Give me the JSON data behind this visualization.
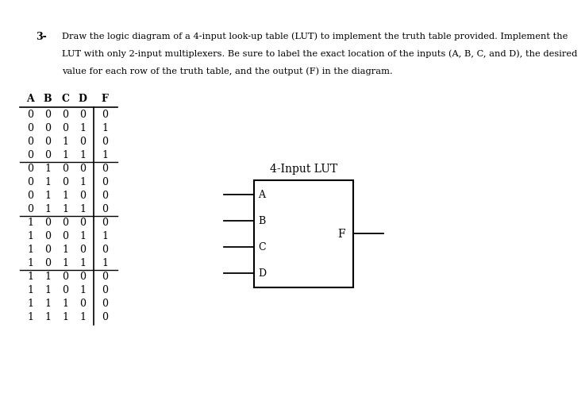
{
  "title_number": "3-",
  "title_text_line1": "Draw the logic diagram of a 4-input look-up table (LUT) to implement the truth table provided. Implement the",
  "title_text_line2": "LUT with only 2-input multiplexers. Be sure to label the exact location of the inputs (A, B, C, and D), the desired",
  "title_text_line3": "value for each row of the truth table, and the output (F) in the diagram.",
  "table_headers": [
    "A",
    "B",
    "C",
    "D",
    "F"
  ],
  "truth_table": [
    [
      0,
      0,
      0,
      0,
      0
    ],
    [
      0,
      0,
      0,
      1,
      1
    ],
    [
      0,
      0,
      1,
      0,
      0
    ],
    [
      0,
      0,
      1,
      1,
      1
    ],
    [
      0,
      1,
      0,
      0,
      0
    ],
    [
      0,
      1,
      0,
      1,
      0
    ],
    [
      0,
      1,
      1,
      0,
      0
    ],
    [
      0,
      1,
      1,
      1,
      0
    ],
    [
      1,
      0,
      0,
      0,
      0
    ],
    [
      1,
      0,
      0,
      1,
      1
    ],
    [
      1,
      0,
      1,
      0,
      0
    ],
    [
      1,
      0,
      1,
      1,
      1
    ],
    [
      1,
      1,
      0,
      0,
      0
    ],
    [
      1,
      1,
      0,
      1,
      0
    ],
    [
      1,
      1,
      1,
      0,
      0
    ],
    [
      1,
      1,
      1,
      1,
      0
    ]
  ],
  "lut_label": "4-Input LUT",
  "lut_inputs": [
    "A",
    "B",
    "C",
    "D"
  ],
  "lut_output": "F",
  "bg_color": "#ffffff",
  "text_color": "#000000",
  "group_ends": [
    3,
    7,
    11
  ]
}
